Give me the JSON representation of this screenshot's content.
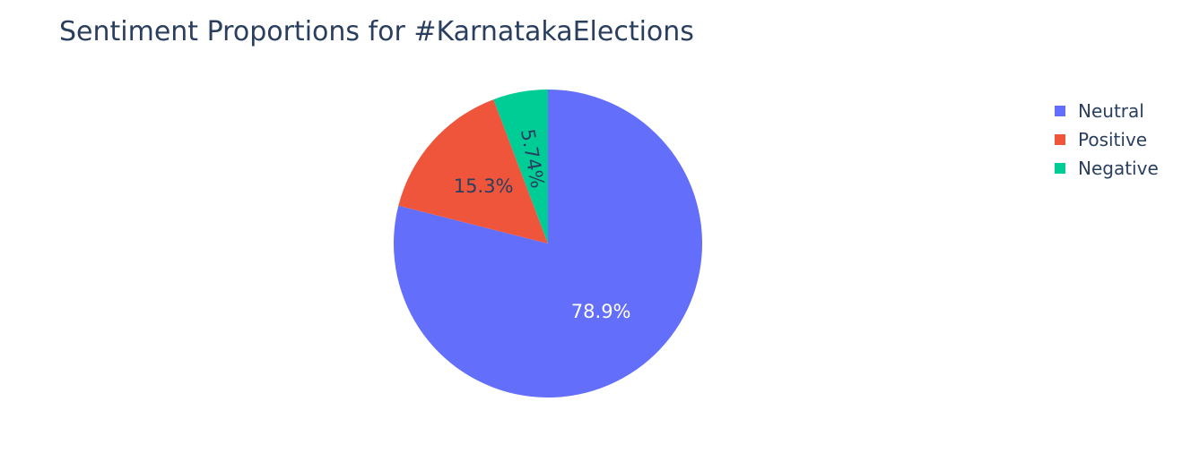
{
  "chart_data": {
    "type": "pie",
    "title": "Sentiment Proportions for #KarnatakaElections",
    "categories": [
      "Neutral",
      "Positive",
      "Negative"
    ],
    "values": [
      78.9,
      15.3,
      5.74
    ],
    "labels": [
      "78.9%",
      "15.3%",
      "5.74%"
    ],
    "colors": [
      "#636efa",
      "#ef553b",
      "#00cc96"
    ],
    "label_colors": [
      "#ffffff",
      "#2a3f5f",
      "#2a3f5f"
    ],
    "direction": "clockwise",
    "start": "12 o'clock",
    "legend_position": "top-right"
  }
}
